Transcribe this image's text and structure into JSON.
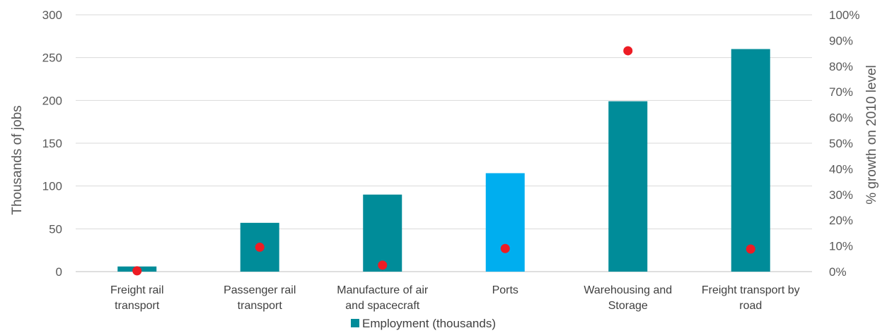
{
  "chart_data": {
    "type": "bar",
    "categories": [
      [
        "Freight rail",
        "transport"
      ],
      [
        "Passenger rail",
        "transport"
      ],
      [
        "Manufacture of air",
        "and spacecraft"
      ],
      [
        "Ports"
      ],
      [
        "Warehousing and",
        "Storage"
      ],
      [
        "Freight transport by",
        "road"
      ]
    ],
    "series": [
      {
        "name": "Employment (thousands)",
        "axis": "left",
        "values": [
          6,
          57,
          90,
          115,
          199,
          260
        ],
        "bar_colors": [
          "#008C99",
          "#008C99",
          "#008C99",
          "#00AEEF",
          "#008C99",
          "#008C99"
        ]
      },
      {
        "axis": "right",
        "marker": "circle",
        "color": "#ED1C24",
        "values": [
          0.3,
          9.5,
          2.5,
          9.0,
          86.0,
          8.8
        ]
      }
    ],
    "ylabel": "Thousands of jobs",
    "y2label": "% growth on 2010 level",
    "ylim": [
      0,
      300
    ],
    "y2lim": [
      0,
      100
    ],
    "yticks": [
      "0",
      "50",
      "100",
      "150",
      "200",
      "250",
      "300"
    ],
    "y2ticks": [
      "0%",
      "10%",
      "20%",
      "30%",
      "40%",
      "50%",
      "60%",
      "70%",
      "80%",
      "90%",
      "100%"
    ],
    "grid": true,
    "legend": {
      "position": "bottom",
      "entries": [
        {
          "label": "Employment (thousands)",
          "color": "#008C99"
        }
      ]
    }
  }
}
